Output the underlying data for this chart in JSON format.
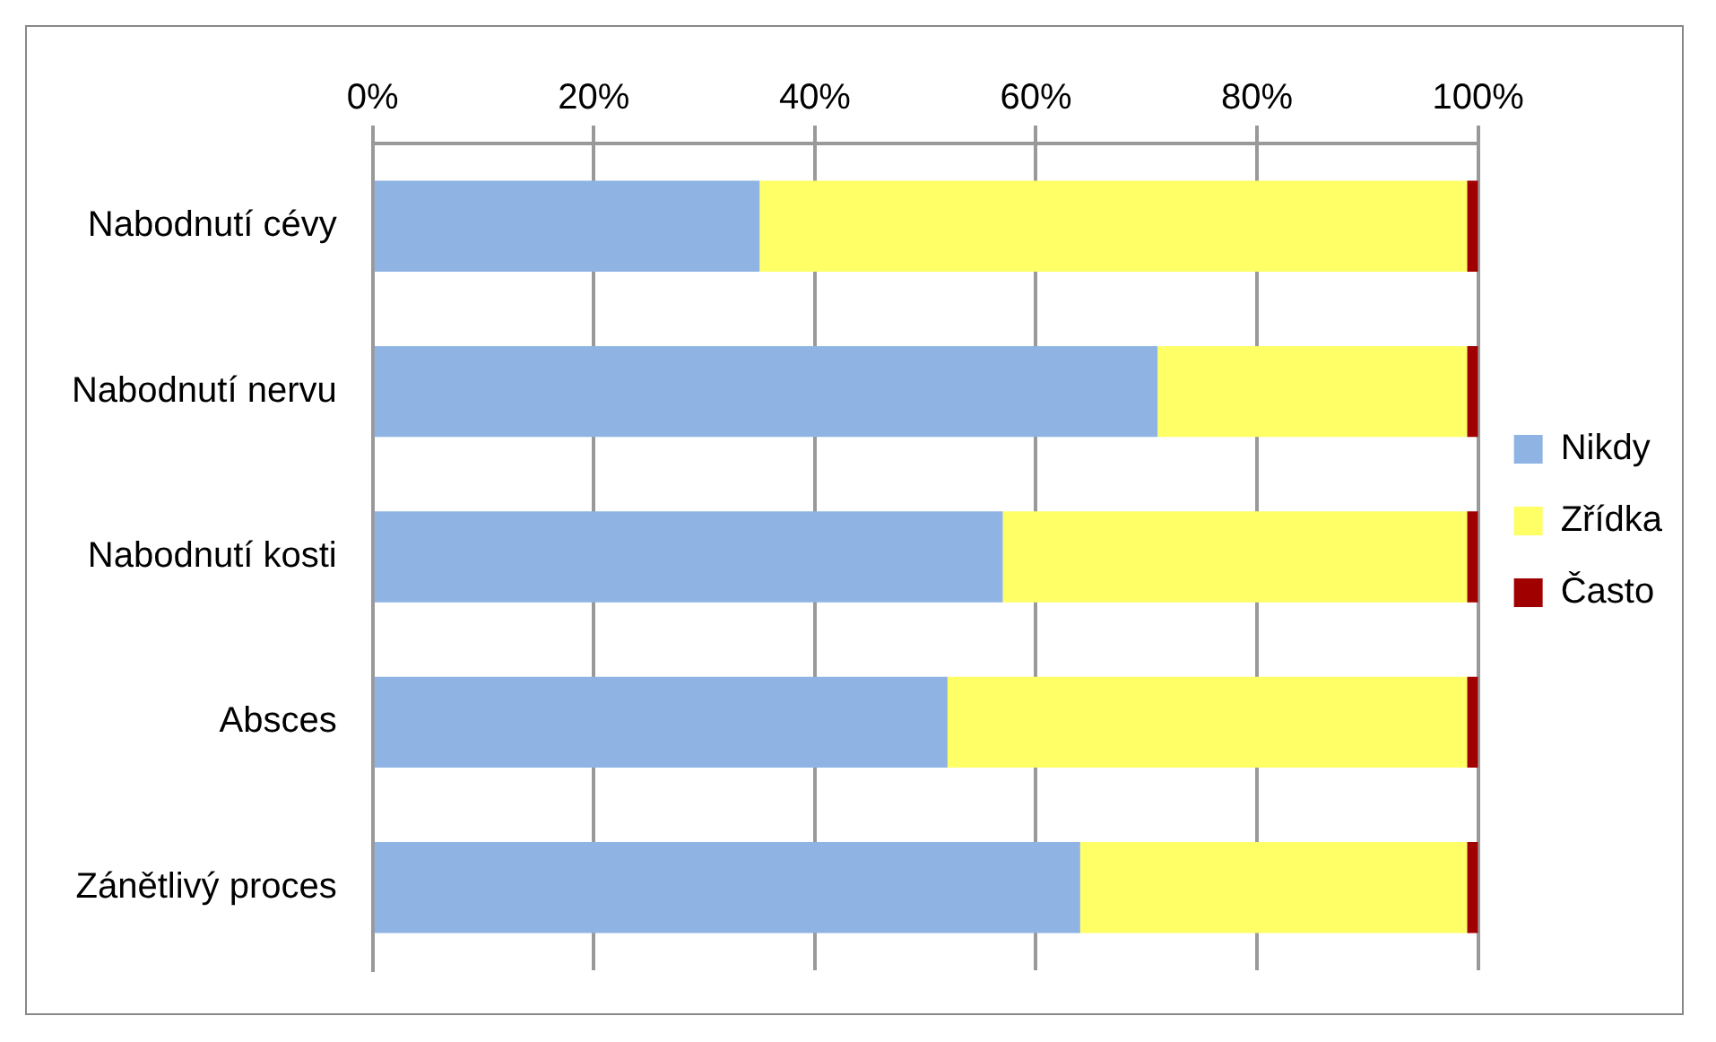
{
  "chart_data": {
    "type": "bar",
    "orientation": "horizontal",
    "stacked": true,
    "categories": [
      "Nabodnutí cévy",
      "Nabodnutí nervu",
      "Nabodnutí kosti",
      "Absces",
      "Zánětlivý proces"
    ],
    "series": [
      {
        "name": "Nikdy",
        "color": "#8fb4e3",
        "values": [
          35,
          71,
          57,
          52,
          64
        ]
      },
      {
        "name": "Zřídka",
        "color": "#ffff66",
        "values": [
          64,
          28,
          42,
          47,
          35
        ]
      },
      {
        "name": "Často",
        "color": "#a00000",
        "values": [
          1,
          1,
          1,
          1,
          1
        ]
      }
    ],
    "xlim": [
      0,
      100
    ],
    "xticks": [
      {
        "value": 0,
        "label": "0%"
      },
      {
        "value": 20,
        "label": "20%"
      },
      {
        "value": 40,
        "label": "40%"
      },
      {
        "value": 60,
        "label": "60%"
      },
      {
        "value": 80,
        "label": "80%"
      },
      {
        "value": 100,
        "label": "100%"
      }
    ],
    "grid": "x",
    "legend": "right"
  }
}
